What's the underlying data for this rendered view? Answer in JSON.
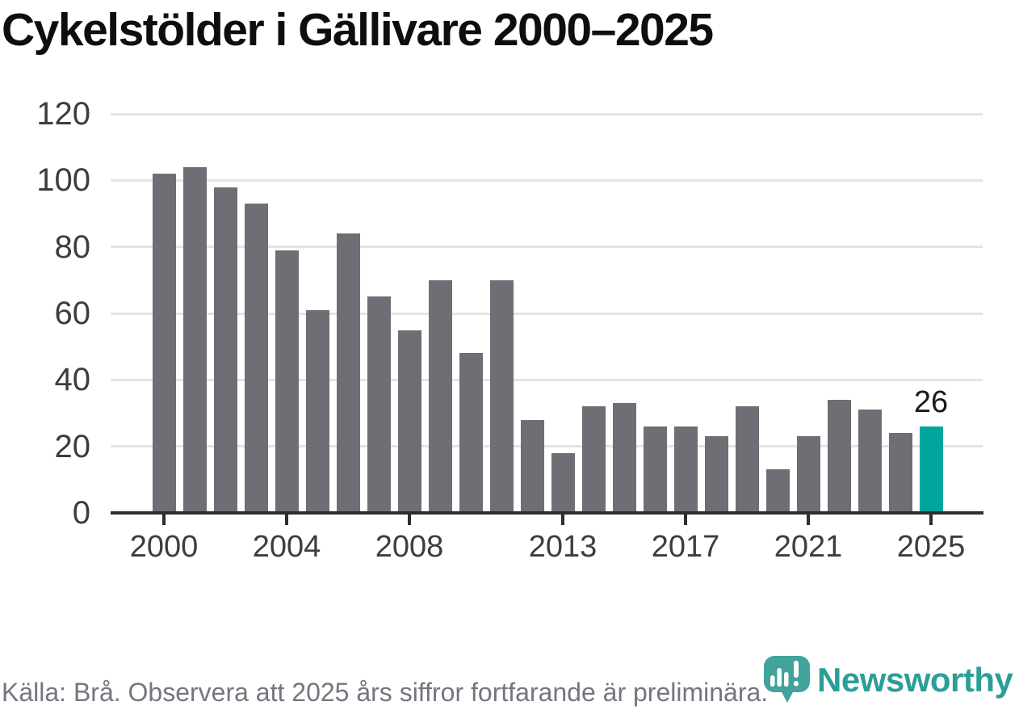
{
  "title": "Cykelstölder i Gällivare 2000–2025",
  "chart_data": {
    "type": "bar",
    "x": [
      2000,
      2001,
      2002,
      2003,
      2004,
      2005,
      2006,
      2007,
      2008,
      2009,
      2010,
      2011,
      2012,
      2013,
      2014,
      2015,
      2016,
      2017,
      2018,
      2019,
      2020,
      2021,
      2022,
      2023,
      2024,
      2025
    ],
    "values": [
      102,
      104,
      98,
      93,
      79,
      61,
      84,
      65,
      55,
      70,
      48,
      70,
      28,
      18,
      32,
      33,
      26,
      26,
      23,
      32,
      13,
      23,
      34,
      31,
      24,
      26
    ],
    "title": "Cykelstölder i Gällivare 2000–2025",
    "xlabel": "",
    "ylabel": "",
    "ylim": [
      0,
      120
    ],
    "yticks": [
      0,
      20,
      40,
      60,
      80,
      100,
      120
    ],
    "xticks": [
      2000,
      2004,
      2008,
      2013,
      2017,
      2021,
      2025
    ],
    "grid": true,
    "legend_position": "none",
    "bar_color": "#6f6e74",
    "highlight": {
      "year": 2025,
      "value": 26,
      "label": "26",
      "color": "#00a69c"
    }
  },
  "footer": {
    "text": "Källa: Brå. Observera att 2025 års siffror fortfarande är preliminära."
  },
  "branding": {
    "logo_text": "Newsworthy",
    "logo_icon": "bar-chart-badge-icon",
    "logo_color": "#2b9e97"
  }
}
